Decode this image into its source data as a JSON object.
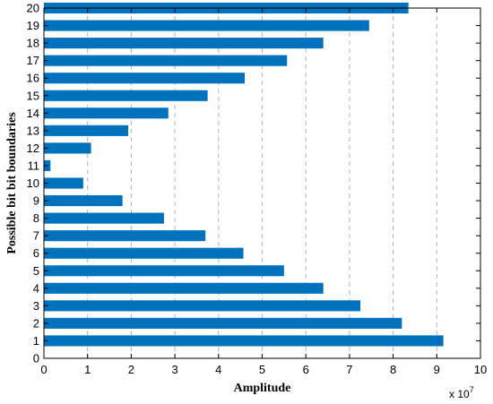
{
  "chart_data": {
    "type": "bar",
    "orientation": "horizontal",
    "title": "",
    "xlabel": "Amplitude",
    "ylabel": "Possible bit bit boundaries",
    "x_exponent_label": "x 10",
    "x_exponent_power": "7",
    "xlim": [
      0,
      10
    ],
    "ylim": [
      0,
      20
    ],
    "x_ticks": [
      "0",
      "1",
      "2",
      "3",
      "4",
      "5",
      "6",
      "7",
      "8",
      "9",
      "10"
    ],
    "y_ticks": [
      "0",
      "1",
      "2",
      "3",
      "4",
      "5",
      "6",
      "7",
      "8",
      "9",
      "10",
      "11",
      "12",
      "13",
      "14",
      "15",
      "16",
      "17",
      "18",
      "19",
      "20"
    ],
    "grid": "vertical dashed",
    "bar_color": "#0072BD",
    "categories": [
      1,
      2,
      3,
      4,
      5,
      6,
      7,
      8,
      9,
      10,
      11,
      12,
      13,
      14,
      15,
      16,
      17,
      18,
      19,
      20
    ],
    "values": [
      9.15,
      8.2,
      7.25,
      6.4,
      5.5,
      4.57,
      3.7,
      2.75,
      1.8,
      0.9,
      0.15,
      1.08,
      1.93,
      2.85,
      3.75,
      4.6,
      5.57,
      6.4,
      7.45,
      8.35
    ]
  }
}
